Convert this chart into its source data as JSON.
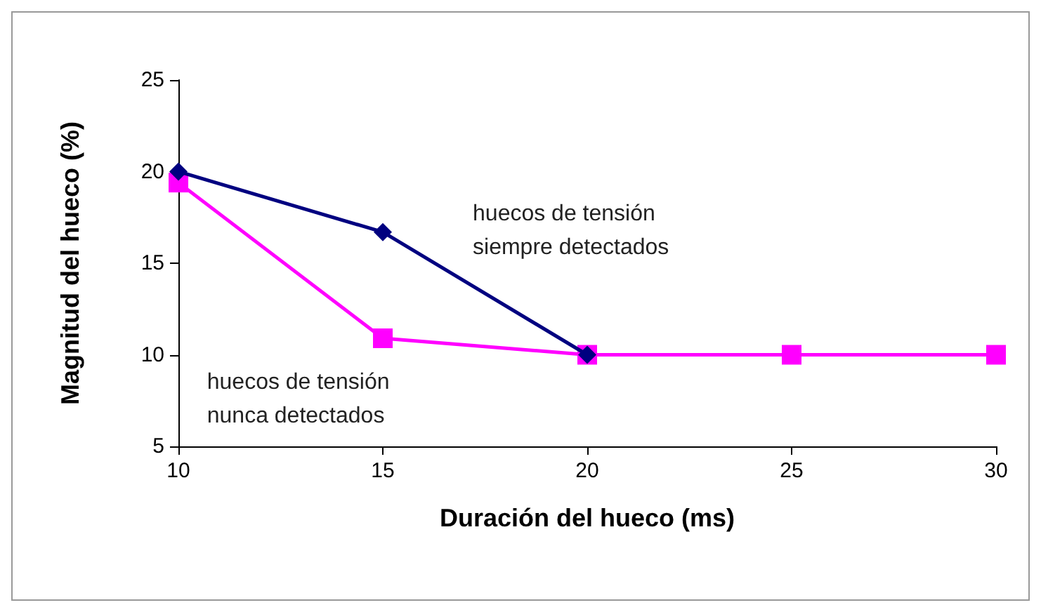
{
  "chart_data": {
    "type": "line",
    "xlabel": "Duración del hueco (ms)",
    "ylabel": "Magnitud del hueco (%)",
    "x": [
      10,
      15,
      20,
      25,
      30
    ],
    "series": [
      {
        "name": "huecos de tensión siempre detectados",
        "color": "#000080",
        "marker": "diamond",
        "values": [
          20,
          16.7,
          10,
          null,
          null
        ]
      },
      {
        "name": "huecos de tensión nunca detectados",
        "color": "#ff00ff",
        "marker": "square",
        "values": [
          19.4,
          10.9,
          10,
          10,
          10
        ]
      }
    ],
    "xlim": [
      10,
      30
    ],
    "xticks": [
      10,
      15,
      20,
      25,
      30
    ],
    "ylim": [
      5,
      25
    ],
    "yticks": [
      5,
      10,
      15,
      20,
      25
    ],
    "grid": false,
    "legend": false,
    "line_style": "solid"
  }
}
